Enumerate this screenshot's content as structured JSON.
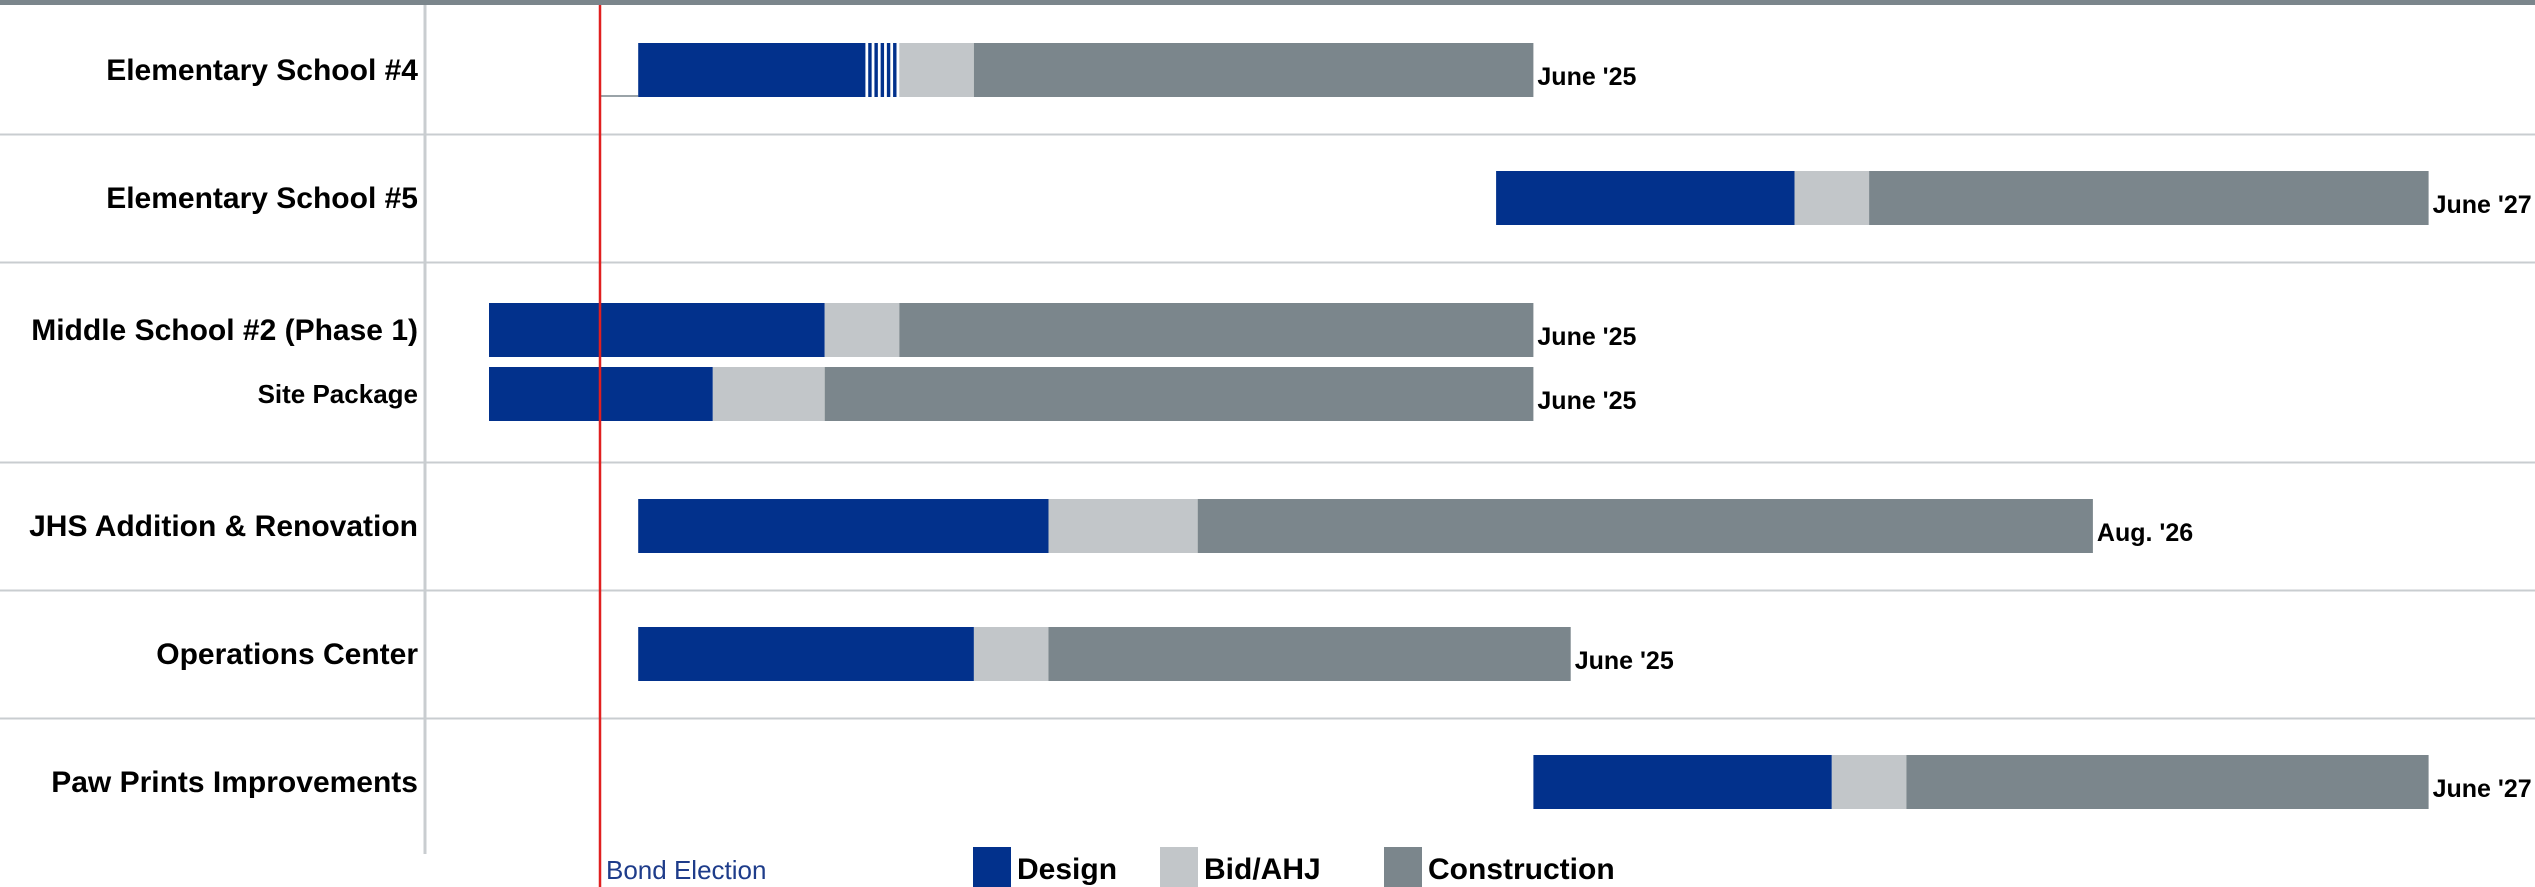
{
  "chart_data": {
    "type": "gantt",
    "title": "",
    "phases": [
      {
        "key": "design",
        "name": "Design",
        "color": "#02318c"
      },
      {
        "key": "bid",
        "name": "Bid/AHJ",
        "color": "#c2c6c9"
      },
      {
        "key": "construction",
        "name": "Construction",
        "color": "#7b868c"
      }
    ],
    "x_unit": "months",
    "x_range": [
      0,
      54
    ],
    "marker": {
      "label": "Bond Election",
      "x": 3,
      "color": "#e02020"
    },
    "rows": [
      {
        "label": "Elementary School #4",
        "bars": [
          {
            "sublabel": "",
            "pre_line_start": 3,
            "segments": [
              {
                "phase": "design",
                "start": 4,
                "end": 10
              },
              {
                "phase": "transition",
                "start": 10,
                "end": 11
              },
              {
                "phase": "bid",
                "start": 11,
                "end": 13
              },
              {
                "phase": "construction",
                "start": 13,
                "end": 28
              }
            ],
            "end_label": "June '25"
          }
        ]
      },
      {
        "label": "Elementary School #5",
        "bars": [
          {
            "sublabel": "",
            "segments": [
              {
                "phase": "design",
                "start": 27,
                "end": 35
              },
              {
                "phase": "bid",
                "start": 35,
                "end": 37
              },
              {
                "phase": "construction",
                "start": 37,
                "end": 52
              }
            ],
            "end_label": "June '27"
          }
        ]
      },
      {
        "label": "Middle School #2 (Phase 1)",
        "bars": [
          {
            "sublabel": "",
            "segments": [
              {
                "phase": "design",
                "start": 0,
                "end": 9
              },
              {
                "phase": "bid",
                "start": 9,
                "end": 11
              },
              {
                "phase": "construction",
                "start": 11,
                "end": 28
              }
            ],
            "end_label": "June '25"
          },
          {
            "sublabel": "Site Package",
            "segments": [
              {
                "phase": "design",
                "start": 0,
                "end": 6
              },
              {
                "phase": "bid",
                "start": 6,
                "end": 9
              },
              {
                "phase": "construction",
                "start": 9,
                "end": 28
              }
            ],
            "end_label": "June '25"
          }
        ]
      },
      {
        "label": "JHS Addition & Renovation",
        "bars": [
          {
            "sublabel": "",
            "segments": [
              {
                "phase": "design",
                "start": 4,
                "end": 15
              },
              {
                "phase": "bid",
                "start": 15,
                "end": 19
              },
              {
                "phase": "construction",
                "start": 19,
                "end": 43
              }
            ],
            "end_label": "Aug. '26"
          }
        ]
      },
      {
        "label": "Operations Center",
        "bars": [
          {
            "sublabel": "",
            "segments": [
              {
                "phase": "design",
                "start": 4,
                "end": 13
              },
              {
                "phase": "bid",
                "start": 13,
                "end": 15
              },
              {
                "phase": "construction",
                "start": 15,
                "end": 29
              }
            ],
            "end_label": "June '25"
          }
        ]
      },
      {
        "label": "Paw Prints Improvements",
        "bars": [
          {
            "sublabel": "",
            "segments": [
              {
                "phase": "design",
                "start": 28,
                "end": 36
              },
              {
                "phase": "bid",
                "start": 36,
                "end": 38
              },
              {
                "phase": "construction",
                "start": 38,
                "end": 52
              }
            ],
            "end_label": "June '27"
          }
        ]
      }
    ],
    "legend": [
      "Design",
      "Bid/AHJ",
      "Construction"
    ],
    "legend_placement": "bottom-center"
  }
}
